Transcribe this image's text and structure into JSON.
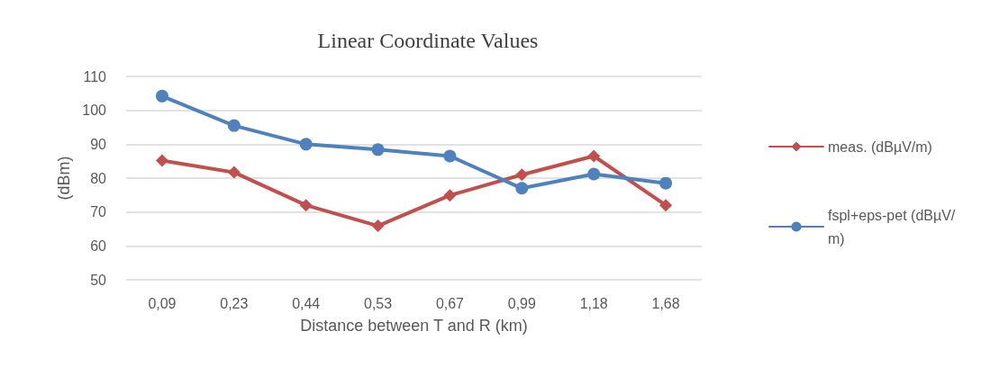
{
  "chart_data": {
    "type": "line",
    "title": "Linear Coordinate Values",
    "xlabel": "Distance between T and R (km)",
    "ylabel": "(dBm)",
    "categories": [
      "0,09",
      "0,23",
      "0,44",
      "0,53",
      "0,67",
      "0,99",
      "1,18",
      "1,68"
    ],
    "series": [
      {
        "name": "meas. (dBµV/m)",
        "color": "#c0504d",
        "marker": "diamond",
        "values": [
          85.2,
          81.7,
          72,
          65.9,
          74.9,
          81,
          86.5,
          72
        ]
      },
      {
        "name": "fspl+eps-pet (dBµV/m)",
        "color": "#4f81bd",
        "marker": "circle",
        "values": [
          104.2,
          95.5,
          90,
          88.4,
          86.5,
          77,
          81.2,
          78.5
        ]
      }
    ],
    "ylim": [
      50,
      110
    ],
    "yticks": [
      50,
      60,
      70,
      80,
      90,
      100,
      110
    ],
    "grid": "y",
    "legend": "right",
    "line_style": "solid"
  }
}
